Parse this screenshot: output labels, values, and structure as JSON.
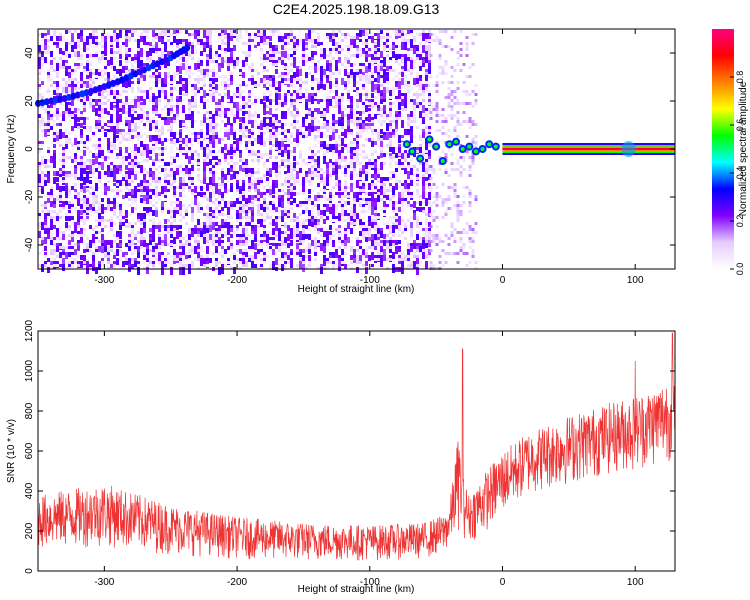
{
  "figure": {
    "title": "C2E4.2025.198.18.09.G13"
  },
  "chart_data": [
    {
      "type": "heatmap",
      "xlabel": "Height of straight line (km)",
      "ylabel": "Frequency (Hz)",
      "xlim": [
        -350,
        130
      ],
      "ylim": [
        -50,
        50
      ],
      "xticks": [
        -300,
        -200,
        -100,
        0,
        100
      ],
      "yticks": [
        -40,
        -20,
        0,
        20,
        40
      ],
      "grid": false,
      "colorbar": {
        "label": "Normalized spectral amplitude",
        "range": [
          0,
          1
        ],
        "ticks": [
          0.0,
          0.2,
          0.4,
          0.6,
          0.8
        ],
        "colors": [
          "#ffffff",
          "#e6ccff",
          "#8000ff",
          "#0000ff",
          "#00ffff",
          "#00ff00",
          "#ffff00",
          "#ff8000",
          "#ff0000",
          "#ff0080"
        ]
      },
      "features": [
        {
          "name": "noise",
          "x_range": [
            -350,
            -55
          ],
          "amplitude": 0.2
        },
        {
          "name": "scattered-noise",
          "x_range": [
            -55,
            -20
          ],
          "amplitude": 0.05
        },
        {
          "name": "diagonal",
          "x": [
            -350,
            -330,
            -310,
            -290,
            -270,
            -250,
            -235
          ],
          "y": [
            19,
            21,
            24,
            28,
            33,
            38,
            43
          ],
          "amplitude": 0.28
        },
        {
          "name": "tone",
          "x_range": [
            -70,
            130
          ],
          "y": 0,
          "amplitude": 0.9
        },
        {
          "name": "burst",
          "x": 95,
          "y": 0,
          "amplitude": 0.4
        }
      ]
    },
    {
      "type": "line",
      "xlabel": "Height of straight line (km)",
      "ylabel": "SNR (10 * v/v)",
      "xlim": [
        -350,
        130
      ],
      "ylim": [
        0,
        1200
      ],
      "xticks": [
        -300,
        -200,
        -100,
        0,
        100
      ],
      "yticks": [
        0,
        200,
        400,
        600,
        800,
        1000,
        1200
      ],
      "grid": false,
      "color": "#ee3333",
      "envelope": {
        "x": [
          -350,
          -300,
          -250,
          -200,
          -150,
          -100,
          -60,
          -45,
          -40,
          -33,
          -30,
          -25,
          -15,
          0,
          20,
          50,
          80,
          100,
          115,
          130
        ],
        "low": [
          110,
          120,
          80,
          60,
          50,
          50,
          60,
          80,
          120,
          200,
          170,
          140,
          180,
          280,
          380,
          430,
          480,
          500,
          520,
          560
        ],
        "high": [
          380,
          440,
          330,
          270,
          240,
          230,
          240,
          280,
          330,
          700,
          480,
          380,
          480,
          600,
          700,
          780,
          840,
          880,
          920,
          1000
        ]
      },
      "peaks": [
        {
          "x": -30,
          "y": 1110
        },
        {
          "x": 100,
          "y": 1050
        },
        {
          "x": 128,
          "y": 1190
        }
      ]
    }
  ]
}
